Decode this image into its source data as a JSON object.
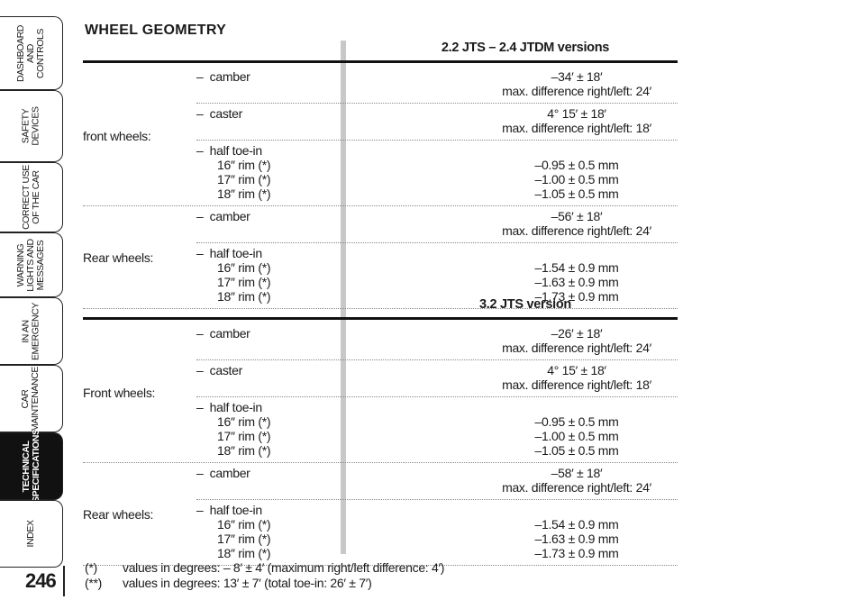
{
  "tabs": [
    {
      "label": "DASHBOARD\nAND\nCONTROLS",
      "active": false
    },
    {
      "label": "SAFETY\nDEVICES",
      "active": false
    },
    {
      "label": "CORRECT USE\nOF THE CAR",
      "active": false
    },
    {
      "label": "WARNING\nLIGHTS AND\nMESSAGES",
      "active": false
    },
    {
      "label": "IN AN\nEMERGENCY",
      "active": false
    },
    {
      "label": "CAR\nMAINTENANCE",
      "active": false
    },
    {
      "label": "TECHNICAL\nSPECIFICATIONS",
      "active": true
    },
    {
      "label": "INDEX",
      "active": false
    }
  ],
  "page_number": "246",
  "title": "WHEEL GEOMETRY",
  "sections": [
    {
      "header": "2.2 JTS – 2.4 JTDM versions",
      "groups": [
        {
          "label": "front wheels:",
          "items": [
            {
              "param": "–  camber",
              "rims": [],
              "values": [
                "–34′ ± 18′",
                "max. difference right/left: 24′"
              ]
            },
            {
              "param": "–  caster",
              "rims": [],
              "values": [
                "4° 15′ ± 18′",
                "max. difference right/left: 18′"
              ]
            },
            {
              "param": "–  half toe-in",
              "rims": [
                "16″ rim (*)",
                "17″ rim (*)",
                "18″ rim (*)"
              ],
              "values": [
                "–0.95 ± 0.5 mm",
                "–1.00 ± 0.5 mm",
                "–1.05 ± 0.5 mm"
              ]
            }
          ]
        },
        {
          "label": "Rear wheels:",
          "items": [
            {
              "param": "–  camber",
              "rims": [],
              "values": [
                "–56′ ± 18′",
                "max. difference right/left: 24′"
              ]
            },
            {
              "param": "–  half toe-in",
              "rims": [
                "16″ rim (*)",
                "17″ rim (*)",
                "18″ rim (*)"
              ],
              "values": [
                "–1.54 ± 0.9 mm",
                "–1.63 ± 0.9 mm",
                "–1.73 ± 0.9 mm"
              ]
            }
          ]
        }
      ]
    },
    {
      "header": "3.2 JTS version",
      "groups": [
        {
          "label": "Front wheels:",
          "items": [
            {
              "param": "–  camber",
              "rims": [],
              "values": [
                "–26′ ± 18′",
                "max. difference right/left: 24′"
              ]
            },
            {
              "param": "–  caster",
              "rims": [],
              "values": [
                "4° 15′ ± 18′",
                "max. difference right/left: 18′"
              ]
            },
            {
              "param": "–  half toe-in",
              "rims": [
                "16″ rim (*)",
                "17″ rim (*)",
                "18″ rim (*)"
              ],
              "values": [
                "–0.95 ± 0.5 mm",
                "–1.00 ± 0.5 mm",
                "–1.05 ± 0.5 mm"
              ]
            }
          ]
        },
        {
          "label": "Rear wheels:",
          "items": [
            {
              "param": "–  camber",
              "rims": [],
              "values": [
                "–58′ ± 18′",
                "max. difference right/left: 24′"
              ]
            },
            {
              "param": "–  half toe-in",
              "rims": [
                "16″ rim (*)",
                "17″ rim (*)",
                "18″ rim (*)"
              ],
              "values": [
                "–1.54 ± 0.9 mm",
                "–1.63 ± 0.9 mm",
                "–1.73 ± 0.9 mm"
              ]
            }
          ]
        }
      ]
    }
  ],
  "footnotes": [
    {
      "mark": "(*)",
      "text": "values in degrees: – 8′ ± 4′ (maximum right/left difference: 4′)"
    },
    {
      "mark": "(**)",
      "text": "values in degrees: 13′ ± 7′ (total toe-in: 26′ ± 7′)"
    }
  ]
}
